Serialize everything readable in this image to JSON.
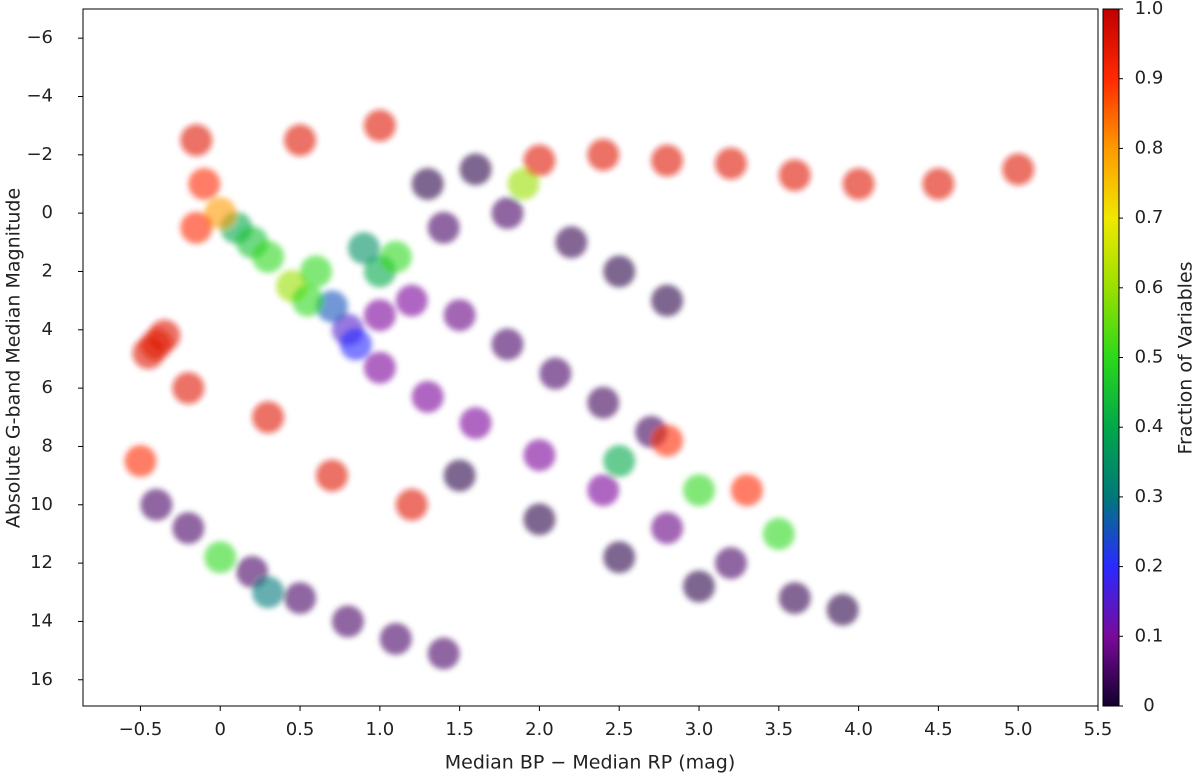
{
  "chart_data": {
    "type": "scatter",
    "x_label": "Median BP − Median RP (mag)",
    "y_label": "Absolute G-band Median Magnitude",
    "colorbar_label": "Fraction of Variables",
    "xlim": [
      -0.86,
      5.5
    ],
    "ylim": [
      16.9,
      -7.0
    ],
    "xticks": [
      {
        "value": -0.5,
        "label": "−0.5"
      },
      0,
      0.5,
      {
        "value": 1,
        "label": "1.0"
      },
      1.5,
      {
        "value": 2,
        "label": "2.0"
      },
      2.5,
      {
        "value": 3,
        "label": "3.0"
      },
      3.5,
      {
        "value": 4,
        "label": "4.0"
      },
      4.5,
      {
        "value": 5,
        "label": "5.0"
      },
      5.5
    ],
    "yticks": [
      {
        "value": -6,
        "label": "−6"
      },
      {
        "value": -4,
        "label": "−4"
      },
      {
        "value": -2,
        "label": "−2"
      },
      0,
      2,
      4,
      6,
      8,
      10,
      12,
      14,
      16
    ],
    "clim": [
      0,
      1
    ],
    "cticks": [
      0,
      0.1,
      0.2,
      0.3,
      0.4,
      0.5,
      0.6,
      0.7,
      0.8,
      0.9,
      {
        "value": 1,
        "label": "1.0"
      }
    ],
    "colormap": [
      "#12002e",
      "#7a0a9a",
      "#2a2aff",
      "#00787a",
      "#00a84a",
      "#2cd81a",
      "#9ae000",
      "#f0e800",
      "#ff9a00",
      "#ff2a00",
      "#c00000"
    ],
    "x": [
      1.5,
      2.0,
      2.5,
      3.0,
      1.3,
      1.6,
      1.8,
      2.2,
      2.5,
      2.8,
      1.4,
      -0.4,
      -0.2,
      0.2,
      0.5,
      0.8,
      1.1,
      1.4,
      0.8,
      1.0,
      1.3,
      1.6,
      2.0,
      2.4,
      2.8,
      3.2,
      3.6,
      3.9,
      1.0,
      1.2,
      1.5,
      1.8,
      2.1,
      2.4,
      2.7,
      0.85,
      0.7,
      0.1,
      0.2,
      0.3,
      0.45,
      0.55,
      0.6,
      1.0,
      0.9,
      1.1,
      0.3,
      0,
      2.5,
      3.0,
      3.5,
      1.9,
      -0.15,
      -0.1,
      0,
      -0.15,
      2.8,
      3.3,
      2.0,
      2.4,
      2.8,
      3.2,
      3.6,
      4.0,
      4.5,
      5.0,
      -0.4,
      -0.35,
      -0.45,
      -0.5,
      0.3,
      0.7,
      1.2,
      -0.2,
      0.5,
      1.0
    ],
    "y": [
      9,
      10.5,
      11.8,
      12.8,
      -1,
      -1.5,
      0,
      1,
      2,
      3,
      0.5,
      10,
      10.8,
      12.3,
      13.2,
      14,
      14.6,
      15.1,
      4,
      5.3,
      6.3,
      7.2,
      8.3,
      9.5,
      10.8,
      12,
      13.2,
      13.6,
      3.5,
      3,
      3.5,
      4.5,
      5.5,
      6.5,
      7.5,
      4.5,
      3.2,
      0.5,
      1,
      1.5,
      2.5,
      3,
      2,
      2,
      1.2,
      1.5,
      13,
      11.8,
      8.5,
      9.5,
      11,
      -1,
      -2.5,
      -1,
      0,
      0.5,
      7.8,
      9.5,
      -1.8,
      -2,
      -1.8,
      -1.7,
      -1.3,
      -1,
      -1,
      -1.5,
      4.5,
      4.2,
      4.8,
      8.5,
      7,
      9,
      10,
      6,
      -2.5,
      -3
    ],
    "c": [
      0.02,
      0.02,
      0.02,
      0.02,
      0.02,
      0.02,
      0.05,
      0.03,
      0.02,
      0.02,
      0.05,
      0.05,
      0.05,
      0.05,
      0.05,
      0.05,
      0.05,
      0.05,
      0.15,
      0.1,
      0.1,
      0.1,
      0.1,
      0.1,
      0.08,
      0.05,
      0.03,
      0.02,
      0.1,
      0.1,
      0.08,
      0.05,
      0.05,
      0.04,
      0.04,
      0.2,
      0.25,
      0.4,
      0.45,
      0.5,
      0.6,
      0.5,
      0.5,
      0.4,
      0.35,
      0.5,
      0.3,
      0.5,
      0.4,
      0.5,
      0.5,
      0.6,
      0.95,
      0.9,
      0.8,
      0.9,
      0.9,
      0.9,
      0.95,
      0.95,
      0.95,
      0.95,
      0.95,
      0.95,
      0.95,
      0.95,
      0.95,
      0.95,
      0.95,
      0.9,
      0.95,
      0.95,
      0.95,
      0.95,
      0.95,
      0.95
    ]
  }
}
